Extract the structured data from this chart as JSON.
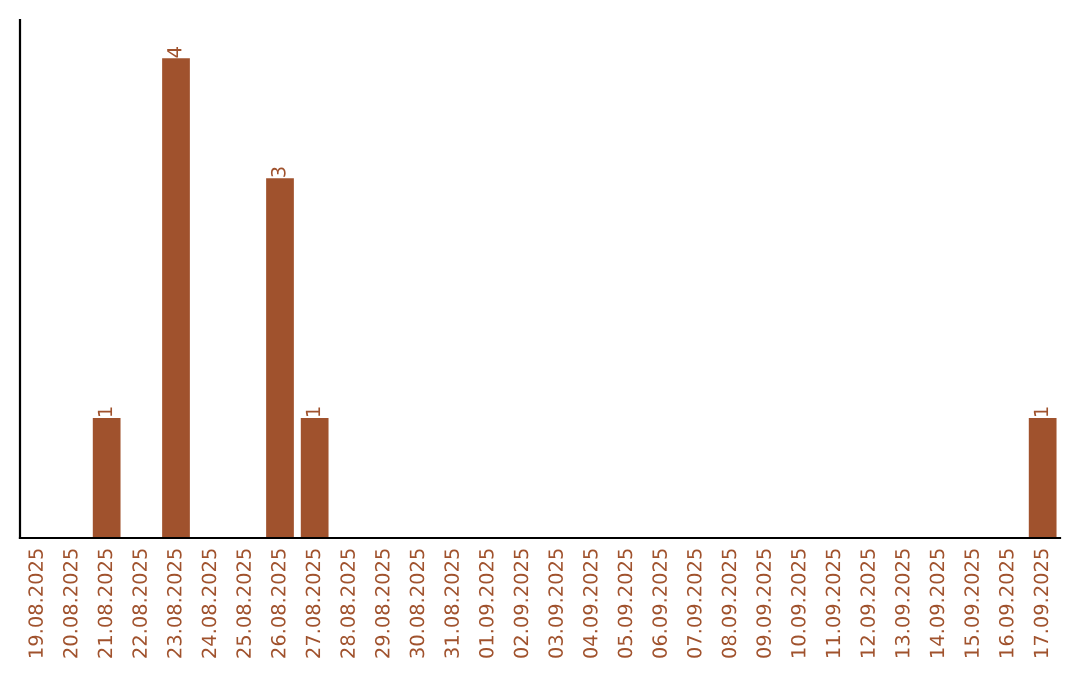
{
  "chart_data": {
    "type": "bar",
    "categories": [
      "19.08.2025",
      "20.08.2025",
      "21.08.2025",
      "22.08.2025",
      "23.08.2025",
      "24.08.2025",
      "25.08.2025",
      "26.08.2025",
      "27.08.2025",
      "28.08.2025",
      "29.08.2025",
      "30.08.2025",
      "31.08.2025",
      "01.09.2025",
      "02.09.2025",
      "03.09.2025",
      "04.09.2025",
      "05.09.2025",
      "06.09.2025",
      "07.09.2025",
      "08.09.2025",
      "09.09.2025",
      "10.09.2025",
      "11.09.2025",
      "12.09.2025",
      "13.09.2025",
      "14.09.2025",
      "15.09.2025",
      "16.09.2025",
      "17.09.2025"
    ],
    "values": [
      0,
      0,
      1,
      0,
      4,
      0,
      0,
      3,
      1,
      0,
      0,
      0,
      0,
      0,
      0,
      0,
      0,
      0,
      0,
      0,
      0,
      0,
      0,
      0,
      0,
      0,
      0,
      0,
      0,
      1
    ],
    "color": "#a0522d",
    "value_labels": [
      null,
      null,
      "1",
      null,
      "4",
      null,
      null,
      "3",
      "1",
      null,
      null,
      null,
      null,
      null,
      null,
      null,
      null,
      null,
      null,
      null,
      null,
      null,
      null,
      null,
      null,
      null,
      null,
      null,
      null,
      "1"
    ],
    "grid": false
  }
}
